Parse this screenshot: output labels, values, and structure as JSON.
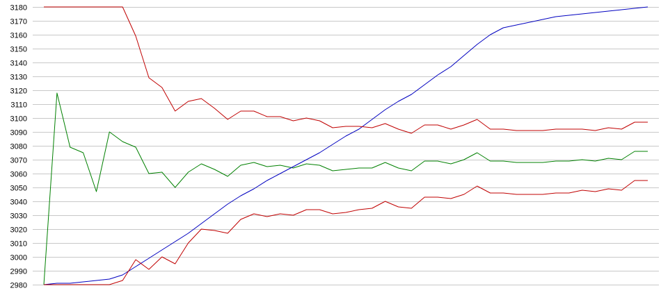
{
  "chart_data": {
    "type": "line",
    "title": "",
    "xlabel": "",
    "ylabel": "",
    "ylim": [
      2980,
      3180
    ],
    "yticks": [
      2980,
      2990,
      3000,
      3010,
      3020,
      3030,
      3040,
      3050,
      3060,
      3070,
      3080,
      3090,
      3100,
      3110,
      3120,
      3130,
      3140,
      3150,
      3160,
      3170,
      3180
    ],
    "grid": true,
    "legend": "none",
    "x": [
      0,
      1,
      2,
      3,
      4,
      5,
      6,
      7,
      8,
      9,
      10,
      11,
      12,
      13,
      14,
      15,
      16,
      17,
      18,
      19,
      20,
      21,
      22,
      23,
      24,
      25,
      26,
      27,
      28,
      29,
      30,
      31,
      32,
      33,
      34,
      35,
      36,
      37,
      38,
      39,
      40,
      41,
      42,
      43,
      44,
      45,
      46
    ],
    "series": [
      {
        "color": "#008000",
        "values": [
          2980,
          3118,
          3079,
          3075,
          3047,
          3090,
          3083,
          3079,
          3060,
          3061,
          3050,
          3061,
          3067,
          3063,
          3058,
          3066,
          3068,
          3065,
          3066,
          3064,
          3067,
          3066,
          3062,
          3063,
          3064,
          3064,
          3068,
          3064,
          3062,
          3069,
          3069,
          3067,
          3070,
          3075,
          3069,
          3069,
          3068,
          3068,
          3068,
          3069,
          3069,
          3070,
          3069,
          3071,
          3070,
          3076,
          3076
        ]
      },
      {
        "color": "#0000c0",
        "values": [
          2980,
          2981,
          2981,
          2982,
          2983,
          2984,
          2987,
          2993,
          2999,
          3005,
          3011,
          3017,
          3024,
          3031,
          3038,
          3044,
          3049,
          3055,
          3060,
          3065,
          3070,
          3075,
          3081,
          3087,
          3092,
          3099,
          3106,
          3112,
          3117,
          3124,
          3131,
          3137,
          3145,
          3153,
          3160,
          3165,
          3167,
          3169,
          3171,
          3173,
          3174,
          3175,
          3176,
          3177,
          3178,
          3179,
          3180
        ]
      },
      {
        "color": "#c00000",
        "values": [
          3180,
          3180,
          3180,
          3180,
          3180,
          3180,
          3180,
          3159,
          3129,
          3122,
          3105,
          3112,
          3114,
          3107,
          3099,
          3105,
          3105,
          3101,
          3101,
          3098,
          3100,
          3098,
          3093,
          3094,
          3094,
          3093,
          3096,
          3092,
          3089,
          3095,
          3095,
          3092,
          3095,
          3099,
          3092,
          3092,
          3091,
          3091,
          3091,
          3092,
          3092,
          3092,
          3091,
          3093,
          3092,
          3097,
          3097
        ]
      },
      {
        "color": "#c00000",
        "values": [
          2980,
          2980,
          2980,
          2980,
          2980,
          2980,
          2983,
          2998,
          2991,
          3000,
          2995,
          3010,
          3020,
          3019,
          3017,
          3027,
          3031,
          3029,
          3031,
          3030,
          3034,
          3034,
          3031,
          3032,
          3034,
          3035,
          3040,
          3036,
          3035,
          3043,
          3043,
          3042,
          3045,
          3051,
          3046,
          3046,
          3045,
          3045,
          3045,
          3046,
          3046,
          3048,
          3047,
          3049,
          3048,
          3055,
          3055
        ]
      }
    ]
  }
}
